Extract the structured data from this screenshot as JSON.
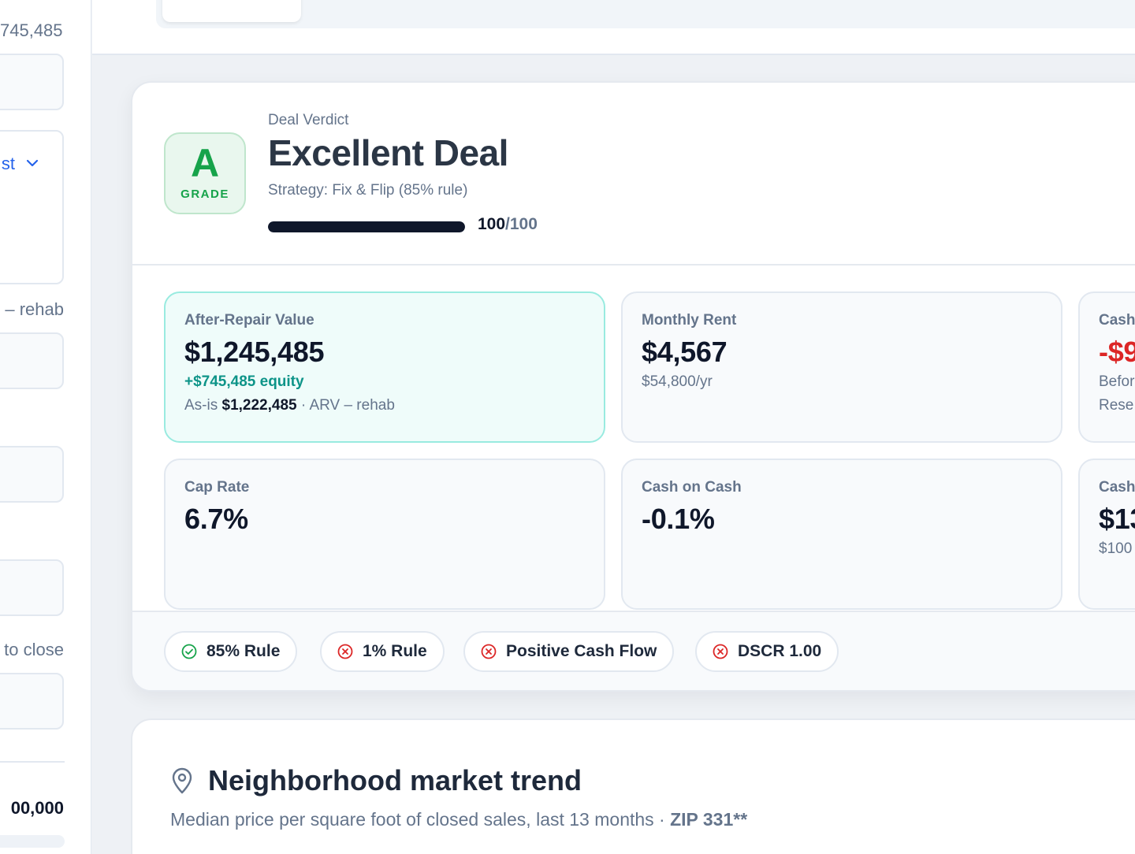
{
  "sidebar": {
    "equity_fragment": "745,485",
    "select_value": "st",
    "rehab_fragment": "– rehab",
    "close_fragment": "to close",
    "total_fragment": "00,000"
  },
  "verdict": {
    "grade_letter": "A",
    "grade_label": "GRADE",
    "label": "Deal Verdict",
    "title": "Excellent Deal",
    "strategy": "Strategy: Fix & Flip (85% rule)",
    "score": "100",
    "score_max": "/100",
    "score_fraction": 1.0
  },
  "metrics": {
    "arv": {
      "label": "After-Repair Value",
      "value": "$1,245,485",
      "equity": "+$745,485 equity",
      "as_is_prefix": "As-is",
      "as_is_value": "$1,222,485",
      "as_is_suffix": "· ARV – rehab"
    },
    "rent": {
      "label": "Monthly Rent",
      "value": "$4,567",
      "sub": "$54,800/yr"
    },
    "cashflow": {
      "label": "Cash",
      "value": "-$9",
      "sub1": "Befor",
      "sub2": "Rese"
    },
    "cap_rate": {
      "label": "Cap Rate",
      "value": "6.7%"
    },
    "coc": {
      "label": "Cash on Cash",
      "value": "-0.1%"
    },
    "cash_needed": {
      "label": "Cash",
      "value": "$13",
      "sub": "$100"
    }
  },
  "rules": [
    {
      "label": "85% Rule",
      "status": "pass"
    },
    {
      "label": "1% Rule",
      "status": "fail"
    },
    {
      "label": "Positive Cash Flow",
      "status": "fail"
    },
    {
      "label": "DSCR 1.00",
      "status": "fail"
    }
  ],
  "neighborhood": {
    "title": "Neighborhood market trend",
    "subtitle": "Median price per square foot of closed sales, last 13 months ·",
    "zip": "ZIP 331**"
  },
  "colors": {
    "pass": "#16a34a",
    "fail": "#dc2626",
    "accent_teal": "#0d9488",
    "link_blue": "#2563eb"
  }
}
